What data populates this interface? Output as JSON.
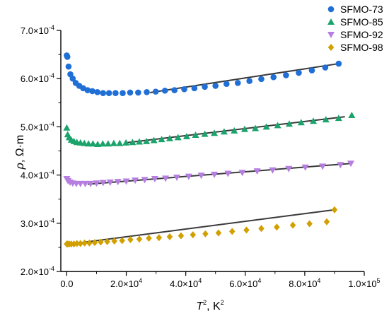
{
  "chart_data": {
    "type": "scatter",
    "xlabel": {
      "main": "T",
      "sup": "2",
      "unit": ", K",
      "unit_sup": "2"
    },
    "ylabel": {
      "main": "ρ",
      "unit": ", Ω·m"
    },
    "xlim": [
      -2000,
      100000
    ],
    "ylim": [
      0.0002,
      0.0007
    ],
    "x_ticks": [
      {
        "value": 0,
        "label": "0.0"
      },
      {
        "value": 20000,
        "label": "2.0×10",
        "sup": "4"
      },
      {
        "value": 40000,
        "label": "4.0×10",
        "sup": "4"
      },
      {
        "value": 60000,
        "label": "6.0×10",
        "sup": "4"
      },
      {
        "value": 80000,
        "label": "8.0×10",
        "sup": "4"
      },
      {
        "value": 100000,
        "label": "1.0×10",
        "sup": "5"
      }
    ],
    "y_ticks": [
      {
        "value": 0.0002,
        "label": "2.0×10",
        "sup": "-4"
      },
      {
        "value": 0.0003,
        "label": "3.0×10",
        "sup": "-4"
      },
      {
        "value": 0.0004,
        "label": "4.0×10",
        "sup": "-4"
      },
      {
        "value": 0.0005,
        "label": "5.0×10",
        "sup": "-4"
      },
      {
        "value": 0.0006,
        "label": "6.0×10",
        "sup": "-4"
      },
      {
        "value": 0.0007,
        "label": "7.0×10",
        "sup": "-4"
      }
    ],
    "grid": false,
    "legend_position": "top-right",
    "series": [
      {
        "name": "SFMO-73",
        "marker": "circle",
        "color": "#1f6fd6",
        "x": [
          0,
          200,
          600,
          1200,
          2000,
          3000,
          4200,
          5500,
          7000,
          8600,
          10300,
          12200,
          14200,
          16400,
          18800,
          21300,
          24000,
          26900,
          29900,
          33000,
          36200,
          39500,
          42900,
          46400,
          50000,
          53700,
          57500,
          61400,
          65400,
          69500,
          73700,
          78000,
          82400,
          86900,
          91400
        ],
        "y": [
          0.000648,
          0.000645,
          0.000625,
          0.000609,
          0.0006,
          0.000591,
          0.000585,
          0.00058,
          0.000576,
          0.000574,
          0.000572,
          0.00057,
          0.00057,
          0.00057,
          0.00057,
          0.000571,
          0.000571,
          0.000572,
          0.000573,
          0.000575,
          0.000576,
          0.000578,
          0.00058,
          0.000583,
          0.000585,
          0.000589,
          0.000591,
          0.000595,
          0.000599,
          0.000603,
          0.000607,
          0.000612,
          0.000617,
          0.000623,
          0.000631
        ],
        "fit": {
          "x": [
            28000,
            91400
          ],
          "y": [
            0.000571,
            0.000631
          ]
        }
      },
      {
        "name": "SFMO-85",
        "marker": "triangle-up",
        "color": "#1aa36b",
        "x": [
          0,
          300,
          800,
          1500,
          2400,
          3400,
          4600,
          5900,
          7300,
          8800,
          10400,
          12100,
          13900,
          15800,
          17800,
          19900,
          22100,
          24400,
          26800,
          29300,
          31900,
          34600,
          37400,
          40300,
          43300,
          46400,
          49600,
          52900,
          56300,
          59800,
          63400,
          67100,
          70900,
          74800,
          78800,
          82900,
          87100,
          91400,
          95800
        ],
        "y": [
          0.000498,
          0.000484,
          0.000478,
          0.000473,
          0.00047,
          0.000468,
          0.000467,
          0.000466,
          0.000465,
          0.000465,
          0.000464,
          0.000465,
          0.000465,
          0.000466,
          0.000466,
          0.000467,
          0.000468,
          0.000469,
          0.00047,
          0.000472,
          0.000474,
          0.000476,
          0.000478,
          0.00048,
          0.000483,
          0.000485,
          0.000487,
          0.00049,
          0.000492,
          0.000495,
          0.000497,
          0.0005,
          0.000503,
          0.000506,
          0.000509,
          0.000512,
          0.000515,
          0.000518,
          0.000524
        ],
        "fit": {
          "x": [
            20000,
            93500
          ],
          "y": [
            0.000467,
            0.000521
          ]
        }
      },
      {
        "name": "SFMO-92",
        "marker": "triangle-down",
        "color": "#b57ee0",
        "x": [
          0,
          400,
          1100,
          2000,
          3200,
          4600,
          6200,
          8000,
          10000,
          12200,
          14600,
          17200,
          20000,
          23000,
          26200,
          29600,
          33200,
          37000,
          41000,
          45200,
          49600,
          54200,
          59000,
          64000,
          69200,
          74600,
          80200,
          86000,
          92000,
          95500
        ],
        "y": [
          0.000392,
          0.000388,
          0.000385,
          0.000383,
          0.000382,
          0.000382,
          0.000382,
          0.000382,
          0.000383,
          0.000384,
          0.000385,
          0.000386,
          0.000387,
          0.000389,
          0.00039,
          0.000392,
          0.000393,
          0.000395,
          0.000397,
          0.000399,
          0.000401,
          0.000403,
          0.000405,
          0.000408,
          0.00041,
          0.000413,
          0.000416,
          0.000418,
          0.000421,
          0.000424
        ],
        "fit": {
          "x": [
            7000,
            95500
          ],
          "y": [
            0.000381,
            0.000424
          ]
        }
      },
      {
        "name": "SFMO-98",
        "marker": "diamond",
        "color": "#d1a000",
        "x": [
          0,
          300,
          800,
          1500,
          2400,
          3400,
          4600,
          6000,
          7600,
          9400,
          11400,
          13600,
          16000,
          18600,
          21400,
          24400,
          27600,
          31000,
          34600,
          38400,
          42400,
          46600,
          51000,
          55600,
          60400,
          65400,
          70600,
          76000,
          81600,
          87400,
          90000
        ],
        "y": [
          0.000257,
          0.000257,
          0.000257,
          0.000257,
          0.000257,
          0.000258,
          0.000258,
          0.000259,
          0.000259,
          0.00026,
          0.000261,
          0.000262,
          0.000263,
          0.000264,
          0.000266,
          0.000267,
          0.000269,
          0.00027,
          0.000272,
          0.000274,
          0.000276,
          0.000278,
          0.00028,
          0.000283,
          0.000286,
          0.000289,
          0.000292,
          0.000296,
          0.000299,
          0.000303,
          0.000328
        ],
        "fit": {
          "x": [
            0,
            90000
          ],
          "y": [
            0.000256,
            0.000328
          ]
        }
      }
    ],
    "fit_color": "#3a3a3a"
  }
}
